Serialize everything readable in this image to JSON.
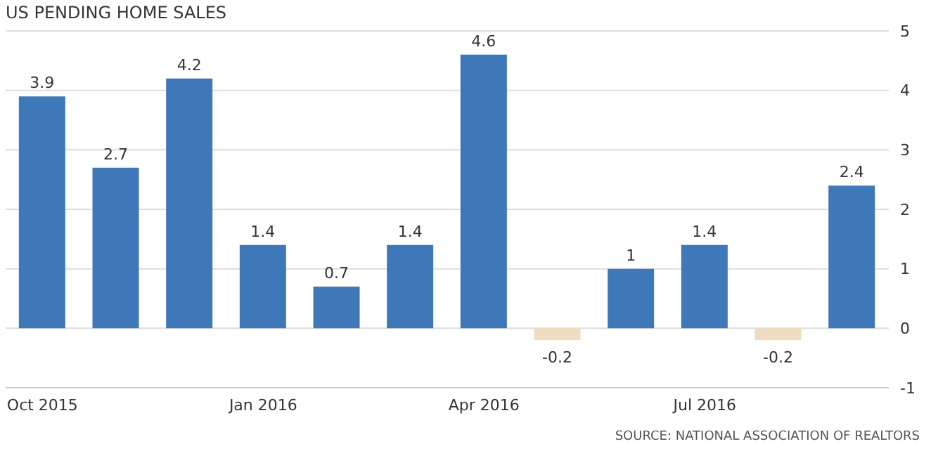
{
  "chart_data": {
    "type": "bar",
    "title": "US PENDING HOME SALES",
    "categories": [
      "Oct 2015",
      null,
      null,
      "Jan 2016",
      null,
      null,
      "Apr 2016",
      null,
      null,
      "Jul 2016",
      null,
      null
    ],
    "values": [
      3.9,
      2.7,
      4.2,
      1.4,
      0.7,
      1.4,
      4.6,
      -0.2,
      1,
      1.4,
      -0.2,
      2.4
    ],
    "colors": [
      "#3f78b8",
      "#3f78b8",
      "#3f78b8",
      "#3f78b8",
      "#3f78b8",
      "#3f78b8",
      "#3f78b8",
      "#f0dcc0",
      "#3f78b8",
      "#3f78b8",
      "#f0dcc0",
      "#3f78b8"
    ],
    "ylim": [
      -1,
      5
    ],
    "yticks": [
      -1,
      0,
      1,
      2,
      3,
      4,
      5
    ],
    "grid": "y",
    "data_labels": true,
    "annotations": [
      "SOURCE: NATIONAL ASSOCIATION OF REALTORS"
    ]
  }
}
